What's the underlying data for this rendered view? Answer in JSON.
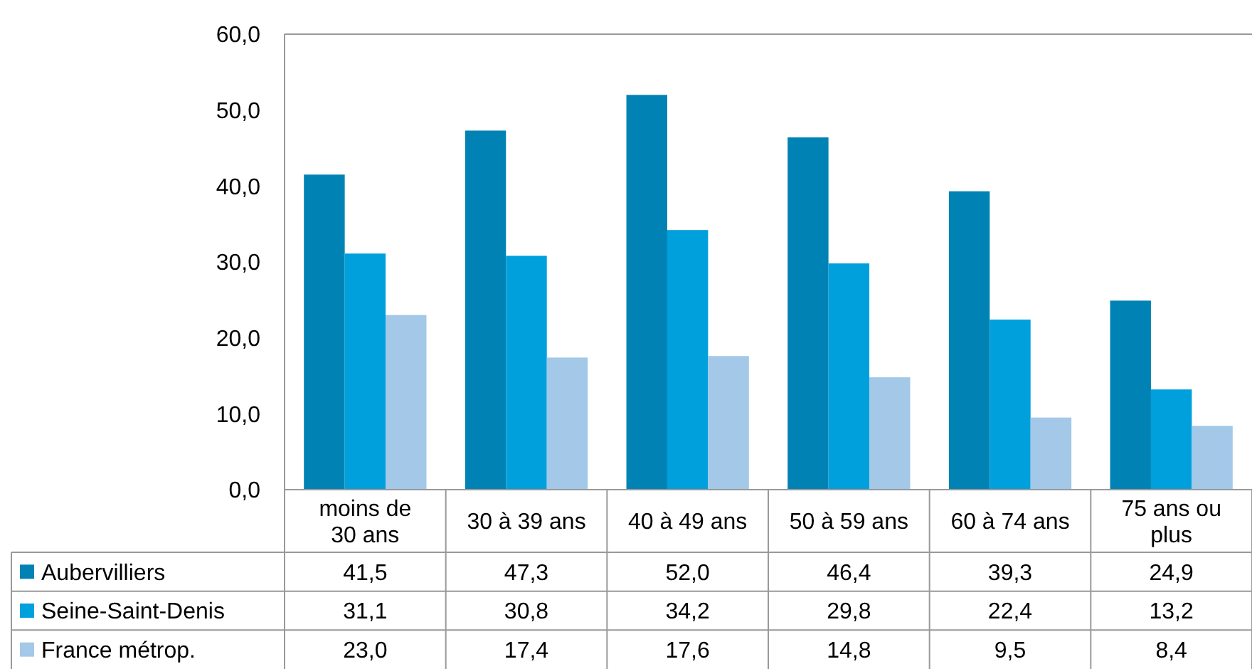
{
  "chart_data": {
    "type": "bar",
    "categories": [
      "moins de 30 ans",
      "30 à 39 ans",
      "40 à 49 ans",
      "50 à 59 ans",
      "60 à 74 ans",
      "75 ans ou plus"
    ],
    "series": [
      {
        "name": "Aubervilliers",
        "color": "#0083b4",
        "values": [
          41.5,
          47.3,
          52.0,
          46.4,
          39.3,
          24.9
        ],
        "value_labels": [
          "41,5",
          "47,3",
          "52,0",
          "46,4",
          "39,3",
          "24,9"
        ]
      },
      {
        "name": "Seine-Saint-Denis",
        "color": "#00a0dc",
        "values": [
          31.1,
          30.8,
          34.2,
          29.8,
          22.4,
          13.2
        ],
        "value_labels": [
          "31,1",
          "30,8",
          "34,2",
          "29,8",
          "22,4",
          "13,2"
        ]
      },
      {
        "name": "France métrop.",
        "color": "#a3c8e8",
        "values": [
          23.0,
          17.4,
          17.6,
          14.8,
          9.5,
          8.4
        ],
        "value_labels": [
          "23,0",
          "17,4",
          "17,6",
          "14,8",
          "9,5",
          "8,4"
        ]
      }
    ],
    "ylim": [
      0,
      60
    ],
    "yticks": [
      {
        "value": 0,
        "label": "0,0"
      },
      {
        "value": 10,
        "label": "10,0"
      },
      {
        "value": 20,
        "label": "20,0"
      },
      {
        "value": 30,
        "label": "30,0"
      },
      {
        "value": 40,
        "label": "40,0"
      },
      {
        "value": 50,
        "label": "50,0"
      },
      {
        "value": 60,
        "label": "60,0"
      }
    ],
    "grid": false,
    "legend": "bottom"
  }
}
